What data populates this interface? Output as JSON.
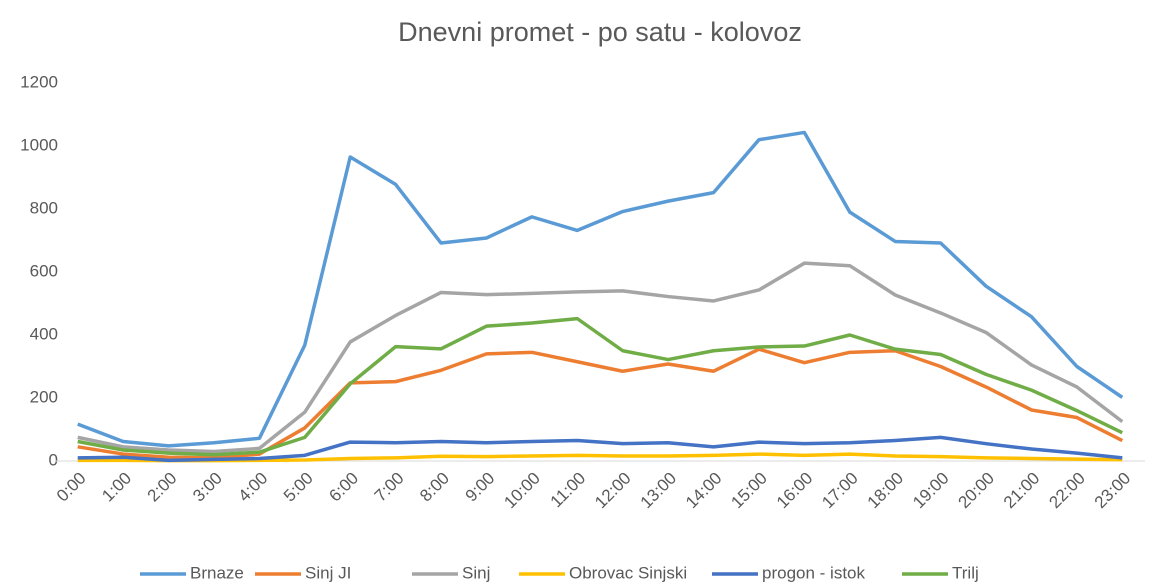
{
  "chart_data": {
    "type": "line",
    "title": "Dnevni promet - po satu - kolovoz",
    "categories": [
      "0:00",
      "1:00",
      "2:00",
      "3:00",
      "4:00",
      "5:00",
      "6:00",
      "7:00",
      "8:00",
      "9:00",
      "10:00",
      "11:00",
      "12:00",
      "13:00",
      "14:00",
      "15:00",
      "16:00",
      "17:00",
      "18:00",
      "19:00",
      "20:00",
      "21:00",
      "22:00",
      "23:00"
    ],
    "series": [
      {
        "name": "Brnaze",
        "color": "#5b9bd5",
        "values": [
          117,
          62,
          48,
          58,
          72,
          368,
          965,
          878,
          692,
          708,
          775,
          732,
          792,
          825,
          852,
          1020,
          1043,
          790,
          697,
          692,
          555,
          458,
          300,
          202
        ]
      },
      {
        "name": "Sinj JI",
        "color": "#ed7d31",
        "values": [
          45,
          22,
          12,
          10,
          22,
          105,
          248,
          252,
          288,
          340,
          345,
          315,
          285,
          308,
          285,
          355,
          312,
          345,
          350,
          300,
          235,
          162,
          138,
          65
        ]
      },
      {
        "name": "Sinj",
        "color": "#a5a5a5",
        "values": [
          75,
          45,
          35,
          30,
          40,
          155,
          378,
          462,
          535,
          528,
          532,
          537,
          540,
          522,
          508,
          543,
          628,
          620,
          527,
          470,
          408,
          305,
          235,
          125
        ]
      },
      {
        "name": "Obrovac Sinjski",
        "color": "#ffc000",
        "values": [
          2,
          2,
          1,
          1,
          2,
          3,
          8,
          10,
          15,
          14,
          16,
          18,
          16,
          16,
          18,
          22,
          18,
          22,
          16,
          14,
          10,
          8,
          6,
          4
        ]
      },
      {
        "name": "progon - istok",
        "color": "#4472c4",
        "values": [
          10,
          12,
          2,
          5,
          8,
          18,
          60,
          58,
          62,
          58,
          62,
          65,
          55,
          58,
          45,
          60,
          55,
          58,
          65,
          75,
          55,
          38,
          25,
          10
        ]
      },
      {
        "name": "Trilj",
        "color": "#70ad47",
        "values": [
          62,
          35,
          25,
          20,
          28,
          75,
          245,
          363,
          356,
          428,
          438,
          452,
          350,
          322,
          350,
          362,
          365,
          400,
          355,
          338,
          275,
          225,
          160,
          90
        ]
      }
    ],
    "ylim": [
      0,
      1200
    ],
    "yticks": [
      0,
      200,
      400,
      600,
      800,
      1000,
      1200
    ],
    "grid": false
  }
}
